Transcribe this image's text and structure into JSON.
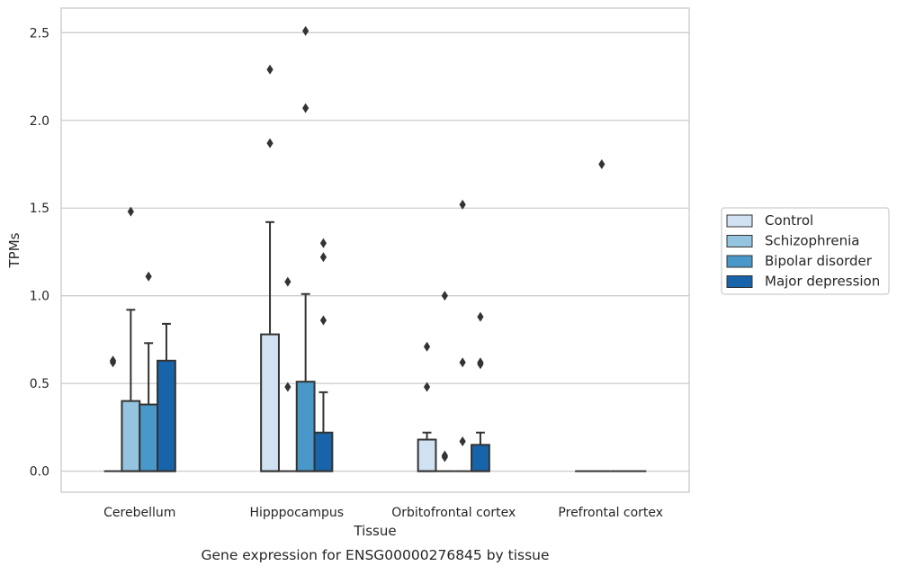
{
  "chart_data": {
    "type": "boxplot",
    "caption": "Gene expression for ENSG00000276845 by tissue",
    "xlabel": "Tissue",
    "ylabel": "TPMs",
    "ylim": [
      -0.12,
      2.64
    ],
    "yticks": [
      0.0,
      0.5,
      1.0,
      1.5,
      2.0,
      2.5
    ],
    "ytick_labels": [
      "0.0",
      "0.5",
      "1.0",
      "1.5",
      "2.0",
      "2.5"
    ],
    "grid": true,
    "legend_position": "right",
    "categories": [
      "Cerebellum",
      "Hipppocampus",
      "Orbitofrontal cortex",
      "Prefrontal cortex"
    ],
    "series": [
      {
        "name": "Control",
        "color": "#d0e1f2",
        "boxes": [
          {
            "q1": 0,
            "median": 0,
            "q3": 0,
            "whisker_low": 0,
            "whisker_high": 0,
            "outliers": [
              0.62,
              0.63
            ]
          },
          {
            "q1": 0,
            "median": 0,
            "q3": 0.78,
            "whisker_low": 0,
            "whisker_high": 1.42,
            "outliers": [
              1.87,
              2.29
            ]
          },
          {
            "q1": 0,
            "median": 0,
            "q3": 0.18,
            "whisker_low": 0,
            "whisker_high": 0.22,
            "outliers": [
              0.48,
              0.71
            ]
          },
          {
            "q1": 0,
            "median": 0,
            "q3": 0,
            "whisker_low": 0,
            "whisker_high": 0,
            "outliers": []
          }
        ]
      },
      {
        "name": "Schizophrenia",
        "color": "#94c4df",
        "boxes": [
          {
            "q1": 0,
            "median": 0,
            "q3": 0.4,
            "whisker_low": 0,
            "whisker_high": 0.92,
            "outliers": [
              1.48
            ]
          },
          {
            "q1": 0,
            "median": 0,
            "q3": 0,
            "whisker_low": 0,
            "whisker_high": 0,
            "outliers": [
              0.48,
              1.08
            ]
          },
          {
            "q1": 0,
            "median": 0,
            "q3": 0,
            "whisker_low": 0,
            "whisker_high": 0,
            "outliers": [
              0.08,
              0.09,
              1.0
            ]
          },
          {
            "q1": 0,
            "median": 0,
            "q3": 0,
            "whisker_low": 0,
            "whisker_high": 0,
            "outliers": [
              1.75
            ]
          }
        ]
      },
      {
        "name": "Bipolar disorder",
        "color": "#4a98c9",
        "boxes": [
          {
            "q1": 0,
            "median": 0,
            "q3": 0.38,
            "whisker_low": 0,
            "whisker_high": 0.73,
            "outliers": [
              1.11
            ]
          },
          {
            "q1": 0,
            "median": 0,
            "q3": 0.51,
            "whisker_low": 0,
            "whisker_high": 1.01,
            "outliers": [
              2.07,
              2.51
            ]
          },
          {
            "q1": 0,
            "median": 0,
            "q3": 0,
            "whisker_low": 0,
            "whisker_high": 0,
            "outliers": [
              0.17,
              0.62,
              1.52
            ]
          },
          {
            "q1": 0,
            "median": 0,
            "q3": 0,
            "whisker_low": 0,
            "whisker_high": 0,
            "outliers": []
          }
        ]
      },
      {
        "name": "Major depression",
        "color": "#1764ab",
        "boxes": [
          {
            "q1": 0,
            "median": 0,
            "q3": 0.63,
            "whisker_low": 0,
            "whisker_high": 0.84,
            "outliers": []
          },
          {
            "q1": 0,
            "median": 0,
            "q3": 0.22,
            "whisker_low": 0,
            "whisker_high": 0.45,
            "outliers": [
              0.86,
              1.22,
              1.3
            ]
          },
          {
            "q1": 0,
            "median": 0,
            "q3": 0.15,
            "whisker_low": 0,
            "whisker_high": 0.22,
            "outliers": [
              0.61,
              0.62,
              0.88
            ]
          },
          {
            "q1": 0,
            "median": 0,
            "q3": 0,
            "whisker_low": 0,
            "whisker_high": 0,
            "outliers": []
          }
        ]
      }
    ],
    "style": {
      "edge_color": "#333333",
      "grid_color": "#cccccc",
      "frame_color": "#cccccc"
    }
  }
}
